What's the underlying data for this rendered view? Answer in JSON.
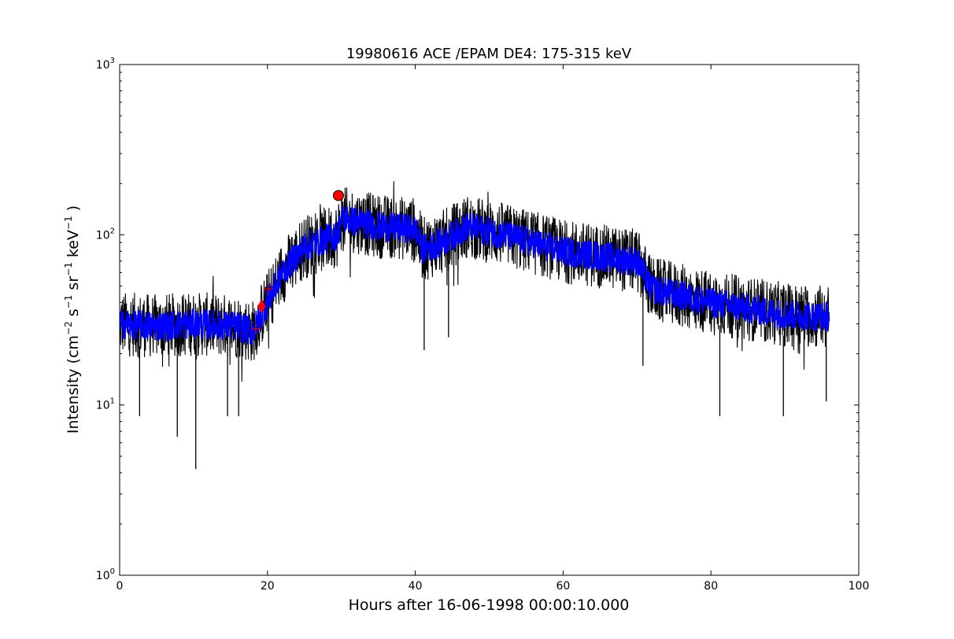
{
  "chart_data": {
    "type": "line",
    "title": "19980616 ACE /EPAM DE4: 175-315 keV",
    "xlabel": "Hours after 16-06-1998 00:00:10.000",
    "ylabel": {
      "prefix": "Intensity (cm",
      "exp1": "−2",
      "s": " s",
      "exp2": "−1",
      "sr": " sr",
      "exp3": "−1",
      "kev": " keV",
      "exp4": "−1",
      "suffix": " )"
    },
    "xlim": [
      0,
      100
    ],
    "ylim": [
      1,
      1000
    ],
    "yscale": "log",
    "grid": false,
    "xticks": [
      0,
      20,
      40,
      60,
      80,
      100
    ],
    "xtick_labels": [
      "0",
      "20",
      "40",
      "60",
      "80",
      "100"
    ],
    "yticks": [
      1,
      10,
      100,
      1000
    ],
    "ytick_labels": [
      {
        "base": "10",
        "exp": "0"
      },
      {
        "base": "10",
        "exp": "1"
      },
      {
        "base": "10",
        "exp": "2"
      },
      {
        "base": "10",
        "exp": "3"
      }
    ],
    "series": [
      {
        "style": "black-noisy-line",
        "color": "#000000",
        "x": [
          0,
          5,
          10,
          16,
          18,
          20,
          22,
          25,
          29.5,
          30,
          35,
          40,
          41,
          44,
          47,
          52,
          60,
          70,
          72,
          80,
          90,
          96
        ],
        "y": [
          30,
          29,
          30,
          29,
          27,
          40,
          60,
          85,
          100,
          125,
          112,
          108,
          82,
          92,
          112,
          100,
          80,
          70,
          48,
          40,
          34,
          33
        ]
      },
      {
        "style": "blue-smoothed-line",
        "color": "#0000ff",
        "x": [
          0,
          5,
          10,
          16,
          18,
          20,
          22,
          25,
          29.5,
          30,
          35,
          40,
          41,
          44,
          47,
          52,
          60,
          70,
          72,
          80,
          90,
          96
        ],
        "y": [
          30,
          29,
          30,
          29,
          27,
          40,
          60,
          85,
          100,
          125,
          112,
          108,
          82,
          92,
          112,
          100,
          80,
          70,
          48,
          40,
          34,
          33
        ]
      }
    ],
    "markers": [
      {
        "type": "circle",
        "color": "#ff0000",
        "x": 29.6,
        "y": 170
      },
      {
        "type": "diamond",
        "color": "#ff0000",
        "x": 19.2,
        "y": 38
      },
      {
        "type": "plus",
        "color": "#ff0000",
        "x": 18.4,
        "y": 28
      },
      {
        "type": "plus",
        "color": "#ff0000",
        "x": 20.1,
        "y": 48
      }
    ],
    "spikes": [
      {
        "x": 10.3,
        "y": 4.2
      },
      {
        "x": 7.8,
        "y": 6.5
      },
      {
        "x": 2.7,
        "y": 8.6
      },
      {
        "x": 14.6,
        "y": 8.6
      },
      {
        "x": 16.1,
        "y": 8.6
      },
      {
        "x": 41.2,
        "y": 21
      },
      {
        "x": 44.5,
        "y": 25
      },
      {
        "x": 70.8,
        "y": 17
      },
      {
        "x": 81.2,
        "y": 8.6
      },
      {
        "x": 89.8,
        "y": 8.6
      },
      {
        "x": 95.6,
        "y": 10.5
      }
    ]
  }
}
